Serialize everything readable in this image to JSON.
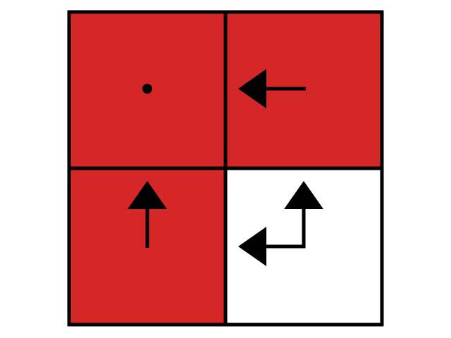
{
  "grid": {
    "rows": 2,
    "cols": 2,
    "border_color": "#000000",
    "cells": [
      {
        "row": 0,
        "col": 0,
        "fill": "#d62728",
        "symbol": "dot"
      },
      {
        "row": 0,
        "col": 1,
        "fill": "#d62728",
        "symbol": "arrow-left"
      },
      {
        "row": 1,
        "col": 0,
        "fill": "#d62728",
        "symbol": "arrow-up"
      },
      {
        "row": 1,
        "col": 1,
        "fill": "#ffffff",
        "symbol": "arrow-up-left-corner"
      }
    ]
  }
}
